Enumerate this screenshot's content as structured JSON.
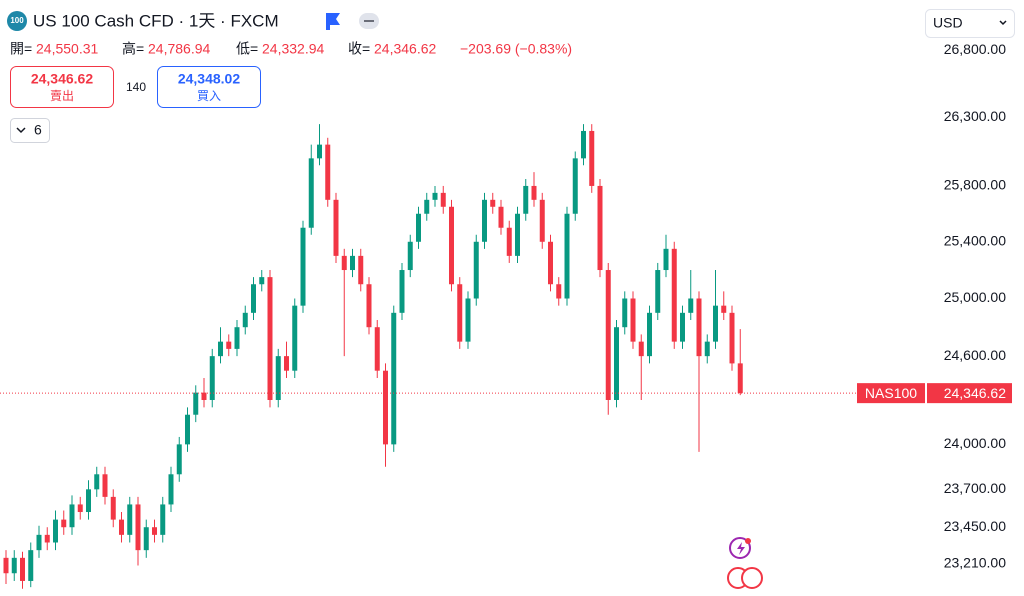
{
  "header": {
    "badge": "100",
    "title": "US 100 Cash CFD · 1天 · FXCM",
    "open_label": "開=",
    "open": "24,550.31",
    "high_label": "高=",
    "high": "24,786.94",
    "low_label": "低=",
    "low": "24,332.94",
    "close_label": "收=",
    "close": "24,346.62",
    "change": "−203.69 (−0.83%)"
  },
  "trade": {
    "sell_price": "24,346.62",
    "sell_label": "賣出",
    "spread": "140",
    "buy_price": "24,348.02",
    "buy_label": "買入"
  },
  "indicators": {
    "count": "6"
  },
  "currency": "USD",
  "chart_data": {
    "type": "candlestick",
    "log_scale": true,
    "grid": false,
    "up_color": "#089981",
    "down_color": "#f23645",
    "ylim": [
      23003,
      27178
    ],
    "yticks": [
      {
        "value": 23210,
        "label": "23,210.00"
      },
      {
        "value": 23450,
        "label": "23,450.00"
      },
      {
        "value": 23700,
        "label": "23,700.00"
      },
      {
        "value": 24000,
        "label": "24,000.00"
      },
      {
        "value": 24600,
        "label": "24,600.00"
      },
      {
        "value": 25000,
        "label": "25,000.00"
      },
      {
        "value": 25400,
        "label": "25,400.00"
      },
      {
        "value": 25800,
        "label": "25,800.00"
      },
      {
        "value": 26300,
        "label": "26,300.00"
      },
      {
        "value": 26800,
        "label": "26,800.00"
      }
    ],
    "open": [
      23250,
      23150,
      23250,
      23100,
      23300,
      23400,
      23350,
      23500,
      23450,
      23600,
      23550,
      23700,
      23800,
      23650,
      23500,
      23400,
      23600,
      23300,
      23450,
      23400,
      23600,
      23800,
      24000,
      24200,
      24350,
      24300,
      24600,
      24700,
      24650,
      24800,
      24900,
      25100,
      25150,
      24300,
      24600,
      24500,
      24950,
      25500,
      26000,
      26100,
      25700,
      25300,
      25200,
      25300,
      25100,
      24800,
      24500,
      24000,
      24900,
      25200,
      25400,
      25600,
      25700,
      25750,
      25650,
      25100,
      24700,
      25000,
      25400,
      25700,
      25650,
      25500,
      25300,
      25600,
      25800,
      25700,
      25400,
      25100,
      25000,
      25600,
      26000,
      26200,
      25800,
      25200,
      24300,
      24800,
      25000,
      24700,
      24600,
      24900,
      25200,
      25350,
      24700,
      24900,
      25000,
      24600,
      24700,
      24950,
      24900,
      24550.31
    ],
    "high": [
      23300,
      23300,
      23290,
      23350,
      23460,
      23450,
      23560,
      23560,
      23660,
      23650,
      23760,
      23850,
      23850,
      23700,
      23550,
      23650,
      23650,
      23500,
      23500,
      23650,
      23850,
      24050,
      24250,
      24400,
      24450,
      24650,
      24800,
      24750,
      24850,
      24950,
      25150,
      25200,
      25200,
      24650,
      24700,
      25000,
      25550,
      26100,
      26250,
      26150,
      25750,
      25350,
      25350,
      25350,
      25150,
      24850,
      24550,
      24950,
      25250,
      25450,
      25650,
      25750,
      25800,
      25800,
      25700,
      25150,
      25050,
      25450,
      25750,
      25750,
      25700,
      25550,
      25650,
      25850,
      25900,
      25750,
      25450,
      25150,
      25650,
      26050,
      26250,
      26250,
      25850,
      25250,
      24850,
      25050,
      25050,
      24750,
      24950,
      25250,
      25450,
      25400,
      24950,
      25200,
      25050,
      24750,
      25200,
      25050,
      24950,
      24786.94
    ],
    "low": [
      23080,
      23100,
      23050,
      23060,
      23250,
      23300,
      23300,
      23400,
      23400,
      23500,
      23500,
      23650,
      23600,
      23450,
      23350,
      23350,
      23200,
      23250,
      23350,
      23350,
      23550,
      23750,
      23950,
      24150,
      24250,
      24250,
      24550,
      24600,
      24600,
      24750,
      24850,
      25050,
      24250,
      24250,
      24450,
      24450,
      24900,
      25450,
      25950,
      25650,
      25250,
      24600,
      25150,
      25050,
      24750,
      24450,
      23850,
      23950,
      24850,
      25150,
      25350,
      25550,
      25650,
      25600,
      25050,
      24650,
      24650,
      24950,
      25350,
      25600,
      25450,
      25250,
      25250,
      25550,
      25650,
      25350,
      25050,
      24950,
      24950,
      25550,
      25950,
      25750,
      25150,
      24200,
      24250,
      24750,
      24650,
      24300,
      24550,
      24850,
      25150,
      24650,
      24650,
      24850,
      23950,
      24550,
      24650,
      24850,
      24500,
      24332.94
    ],
    "close": [
      23150,
      23250,
      23100,
      23300,
      23400,
      23350,
      23500,
      23450,
      23600,
      23550,
      23700,
      23800,
      23650,
      23500,
      23400,
      23600,
      23300,
      23450,
      23400,
      23600,
      23800,
      24000,
      24200,
      24350,
      24300,
      24600,
      24700,
      24650,
      24800,
      24900,
      25100,
      25150,
      24300,
      24600,
      24500,
      24950,
      25500,
      26000,
      26100,
      25700,
      25300,
      25200,
      25300,
      25100,
      24800,
      24500,
      24000,
      24900,
      25200,
      25400,
      25600,
      25700,
      25750,
      25650,
      25100,
      24700,
      25000,
      25400,
      25700,
      25650,
      25500,
      25300,
      25600,
      25800,
      25700,
      25400,
      25100,
      25000,
      25600,
      26000,
      26200,
      25800,
      25200,
      24300,
      24800,
      25000,
      24700,
      24600,
      24900,
      25200,
      25350,
      24700,
      24900,
      25000,
      24600,
      24700,
      24950,
      24900,
      24550,
      24346.62
    ],
    "price_label": {
      "name": "NAS100",
      "value_label": "24,346.62"
    }
  }
}
